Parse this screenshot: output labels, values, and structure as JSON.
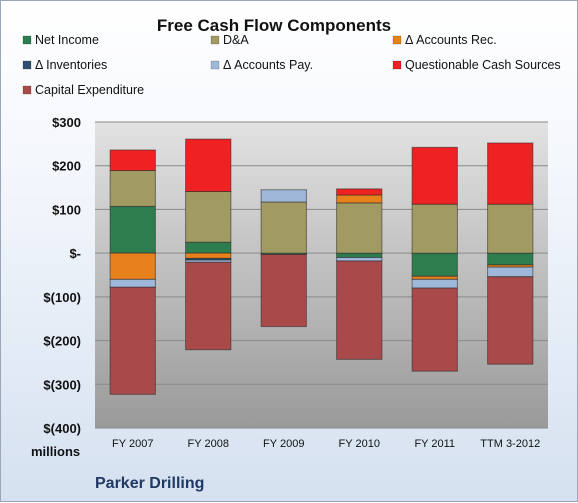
{
  "chart_data": {
    "type": "bar",
    "stacked": true,
    "title": "Free Cash Flow Components",
    "unit_label": "millions",
    "footer": "Parker Drilling",
    "categories": [
      "FY 2007",
      "FY 2008",
      "FY 2009",
      "FY 2010",
      "FY 2011",
      "TTM 3-2012"
    ],
    "ylim": [
      -400,
      300
    ],
    "yticks": [
      300,
      200,
      100,
      0,
      -100,
      -200,
      -300,
      -400
    ],
    "ytick_labels": [
      "$300",
      "$200",
      "$100",
      "$-",
      "$(100)",
      "$(200)",
      "$(300)",
      "$(400)"
    ],
    "grid": true,
    "legend_position": "top",
    "series": [
      {
        "name": "Net Income",
        "color": "#2e7d4f",
        "values": [
          107,
          25,
          -3,
          -10,
          -53,
          -27
        ]
      },
      {
        "name": "D&A",
        "color": "#a29a63",
        "values": [
          82,
          116,
          117,
          115,
          112,
          112
        ]
      },
      {
        "name": "Δ Accounts Rec.",
        "color": "#e8801c",
        "values": [
          -60,
          -12,
          0,
          18,
          -7,
          -5
        ]
      },
      {
        "name": "Δ Inventories",
        "color": "#2f4f6e",
        "values": [
          0,
          -4,
          0,
          0,
          0,
          0
        ]
      },
      {
        "name": "Δ Accounts Pay.",
        "color": "#9fb7d9",
        "values": [
          -18,
          -5,
          28,
          -8,
          -20,
          -22
        ]
      },
      {
        "name": "Questionable Cash Sources",
        "color": "#ee2222",
        "values": [
          47,
          120,
          0,
          14,
          130,
          140
        ]
      },
      {
        "name": "Capital Expenditure",
        "color": "#a94a4a",
        "values": [
          -245,
          -200,
          -165,
          -225,
          -190,
          -200
        ]
      }
    ]
  }
}
